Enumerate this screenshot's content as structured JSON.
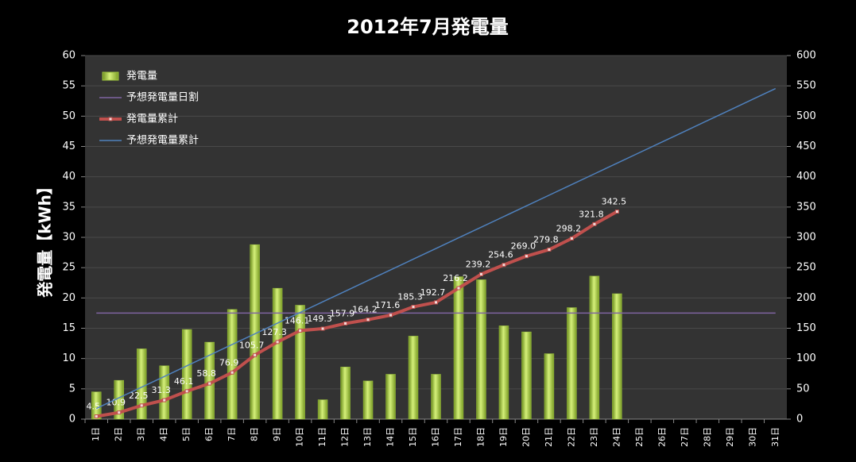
{
  "chart_data": {
    "type": "combo",
    "title": "2012年7月発電量",
    "y_label": "発電量【kWh】",
    "categories": [
      "1日",
      "2日",
      "3日",
      "4日",
      "5日",
      "6日",
      "7日",
      "8日",
      "9日",
      "10日",
      "11日",
      "12日",
      "13日",
      "14日",
      "15日",
      "16日",
      "17日",
      "18日",
      "19日",
      "20日",
      "21日",
      "22日",
      "23日",
      "24日",
      "25日",
      "26日",
      "27日",
      "28日",
      "29日",
      "30日",
      "31日"
    ],
    "ylim": [
      0,
      60
    ],
    "yticks": [
      0,
      5,
      10,
      15,
      20,
      25,
      30,
      35,
      40,
      45,
      50,
      55,
      60
    ],
    "y2lim": [
      0,
      600
    ],
    "y2ticks": [
      0,
      50,
      100,
      150,
      200,
      250,
      300,
      350,
      400,
      450,
      500,
      550,
      600
    ],
    "grid": true,
    "legend": "upper left",
    "series": [
      {
        "name": "発電量",
        "kind": "bar",
        "color": "#9bc23c",
        "axis": "y",
        "values": [
          4.5,
          6.4,
          11.6,
          8.8,
          14.8,
          12.7,
          18.1,
          28.8,
          21.6,
          18.8,
          3.2,
          8.6,
          6.3,
          7.4,
          13.7,
          7.4,
          23.5,
          23.0,
          15.4,
          14.4,
          10.8,
          18.4,
          23.6,
          20.7,
          null,
          null,
          null,
          null,
          null,
          null,
          null
        ]
      },
      {
        "name": "予想発電量日割",
        "kind": "line",
        "color": "#8064a2",
        "axis": "y",
        "values": [
          17.5,
          17.5,
          17.5,
          17.5,
          17.5,
          17.5,
          17.5,
          17.5,
          17.5,
          17.5,
          17.5,
          17.5,
          17.5,
          17.5,
          17.5,
          17.5,
          17.5,
          17.5,
          17.5,
          17.5,
          17.5,
          17.5,
          17.5,
          17.5,
          17.5,
          17.5,
          17.5,
          17.5,
          17.5,
          17.5,
          17.5
        ]
      },
      {
        "name": "発電量累計",
        "kind": "line-marker",
        "color": "#c0504d",
        "axis": "y2",
        "values": [
          4.5,
          10.9,
          22.5,
          31.3,
          46.1,
          58.8,
          76.9,
          105.7,
          127.3,
          146.1,
          149.3,
          157.9,
          164.2,
          171.6,
          185.3,
          192.7,
          216.2,
          239.2,
          254.6,
          269.0,
          279.8,
          298.2,
          321.8,
          342.5,
          null,
          null,
          null,
          null,
          null,
          null,
          null
        ],
        "value_labels": [
          "4.5",
          "10.9",
          "22.5",
          "31.3",
          "46.1",
          "58.8",
          "76.9",
          "105.7",
          "127.3",
          "146.1",
          "149.3",
          "157.9",
          "164.2",
          "171.6",
          "185.3",
          "192.7",
          "216.2",
          "239.2",
          "254.6",
          "269.0",
          "279.8",
          "298.2",
          "321.8",
          "342.5",
          null,
          null,
          null,
          null,
          null,
          null,
          null
        ]
      },
      {
        "name": "予想発電量累計",
        "kind": "line",
        "color": "#4f81bd",
        "axis": "y2",
        "values": [
          17.6,
          35.2,
          52.8,
          70.4,
          88,
          105.6,
          123.2,
          140.8,
          158.4,
          176,
          193.6,
          211.2,
          228.8,
          246.4,
          264,
          281.6,
          299.2,
          316.8,
          334.4,
          352,
          369.6,
          387.2,
          404.8,
          422.4,
          440,
          457.6,
          475.2,
          492.8,
          510.4,
          528,
          545.6
        ]
      }
    ]
  }
}
